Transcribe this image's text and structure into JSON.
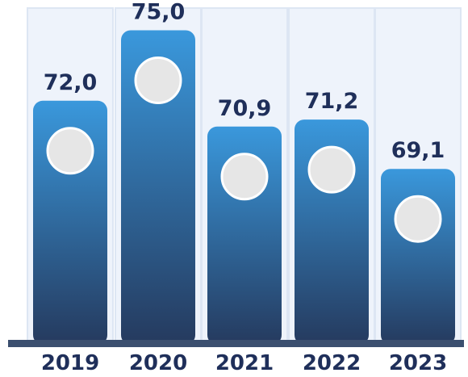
{
  "chart_data": {
    "type": "bar",
    "categories": [
      "2019",
      "2020",
      "2021",
      "2022",
      "2023"
    ],
    "values": [
      72.0,
      75.0,
      70.9,
      71.2,
      69.1
    ],
    "value_labels": [
      "72,0",
      "75,0",
      "70,9",
      "71,2",
      "69,1"
    ],
    "title": "",
    "xlabel": "",
    "ylabel": "",
    "grid": false,
    "legend": "none",
    "colors": {
      "bar_top": "#3a98dc",
      "bar_bottom": "#253a5e",
      "column_background": "#eef3fb",
      "column_border": "#dde6f3",
      "baseline": "#3b4f6f",
      "marker_fill": "#e6e6e6",
      "marker_stroke": "#ffffff",
      "label_text": "#1f2f5a"
    }
  }
}
